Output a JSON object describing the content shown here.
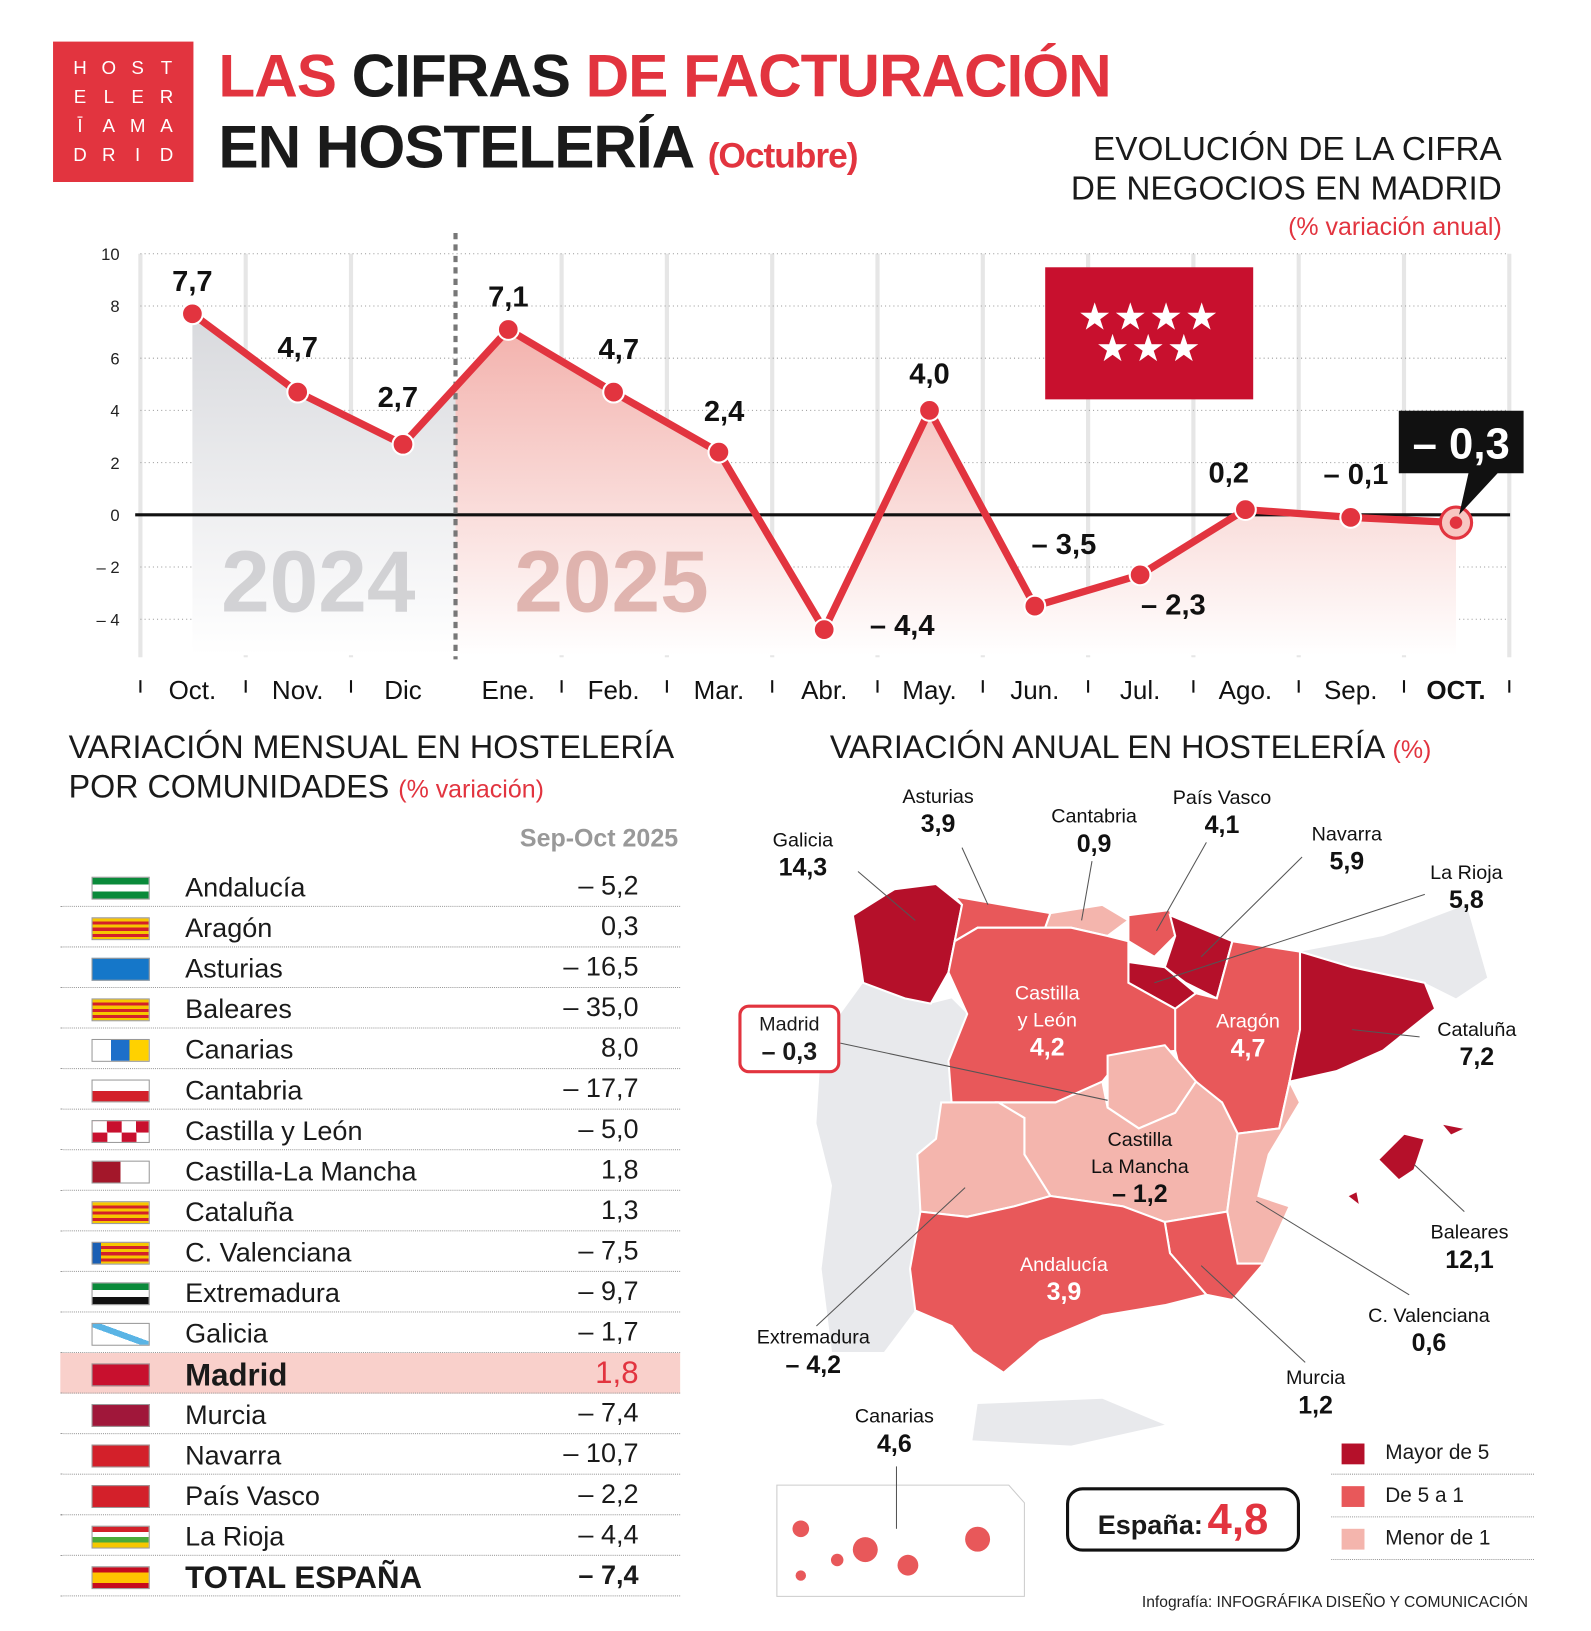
{
  "logo": {
    "letters": [
      "H",
      "O",
      "S",
      "T",
      "E",
      "L",
      "E",
      "R",
      "Ī",
      "A",
      "M",
      "A",
      "D",
      "R",
      "I",
      "D"
    ]
  },
  "title": {
    "line1_a": "LAS",
    "line1_b": "CIFRAS",
    "line1_c": "DE FACTURACIÓN",
    "line2": "EN HOSTELERÍA",
    "month": "(Octubre)"
  },
  "chart_data": {
    "type": "line",
    "title": "EVOLUCIÓN DE LA CIFRA DE NEGOCIOS EN MADRID",
    "title_line1": "EVOLUCIÓN DE LA CIFRA",
    "title_line2": "DE NEGOCIOS EN MADRID",
    "subtitle": "(% variación anual)",
    "categories": [
      "Oct.",
      "Nov.",
      "Dic",
      "Ene.",
      "Feb.",
      "Mar.",
      "Abr.",
      "May.",
      "Jun.",
      "Jul.",
      "Ago.",
      "Sep.",
      "OCT."
    ],
    "values": [
      7.7,
      4.7,
      2.7,
      7.1,
      4.7,
      2.4,
      -4.4,
      4.0,
      -3.5,
      -2.3,
      0.2,
      -0.1,
      -0.3
    ],
    "labels": [
      "7,7",
      "4,7",
      "2,7",
      "7,1",
      "4,7",
      "2,4",
      "– 4,4",
      "4,0",
      "– 3,5",
      "– 2,3",
      "0,2",
      "– 0,1",
      "– 0,3"
    ],
    "yticks": [
      "10",
      "8",
      "6",
      "4",
      "2",
      "0",
      "– 2",
      "– 4"
    ],
    "ytick_values": [
      10,
      8,
      6,
      4,
      2,
      0,
      -2,
      -4
    ],
    "ylim": [
      -5,
      10
    ],
    "year_labels": [
      "2024",
      "2025"
    ],
    "colors": {
      "line": "#e2343f",
      "fill_2024": "#d8d9dd",
      "fill_2025": "#f3b2ad"
    },
    "grid": true
  },
  "monthly": {
    "title_line1": "VARIACIÓN MENSUAL EN HOSTELERÍA",
    "title_line2": "POR COMUNIDADES",
    "unit": "(% variación)",
    "column": "Sep-Oct 2025",
    "rows": [
      {
        "name": "Andalucía",
        "value": "– 5,2",
        "flag": "andalucia"
      },
      {
        "name": "Aragón",
        "value": "0,3",
        "flag": "aragon"
      },
      {
        "name": "Asturias",
        "value": "– 16,5",
        "flag": "asturias"
      },
      {
        "name": "Baleares",
        "value": "– 35,0",
        "flag": "baleares"
      },
      {
        "name": "Canarias",
        "value": "8,0",
        "flag": "canarias"
      },
      {
        "name": "Cantabria",
        "value": "– 17,7",
        "flag": "cantabria"
      },
      {
        "name": "Castilla y León",
        "value": "– 5,0",
        "flag": "castilla-leon"
      },
      {
        "name": "Castilla-La Mancha",
        "value": "1,8",
        "flag": "castilla-la-mancha"
      },
      {
        "name": "Cataluña",
        "value": "1,3",
        "flag": "cataluna"
      },
      {
        "name": "C. Valenciana",
        "value": "– 7,5",
        "flag": "valenciana"
      },
      {
        "name": "Extremadura",
        "value": "– 9,7",
        "flag": "extremadura"
      },
      {
        "name": "Galicia",
        "value": "– 1,7",
        "flag": "galicia"
      },
      {
        "name": "Madrid",
        "value": "1,8",
        "flag": "madrid",
        "highlight": true
      },
      {
        "name": "Murcia",
        "value": "– 7,4",
        "flag": "murcia"
      },
      {
        "name": "Navarra",
        "value": "– 10,7",
        "flag": "navarra"
      },
      {
        "name": "País Vasco",
        "value": "– 2,2",
        "flag": "pais-vasco"
      },
      {
        "name": "La Rioja",
        "value": "– 4,4",
        "flag": "rioja"
      },
      {
        "name": "TOTAL ESPAÑA",
        "value": "– 7,4",
        "flag": "espana",
        "total": true
      }
    ]
  },
  "annual": {
    "title": "VARIACIÓN ANUAL EN HOSTELERÍA",
    "unit": "(%)",
    "regions": {
      "galicia": {
        "name": "Galicia",
        "value": "14,3",
        "cat": "high"
      },
      "asturias": {
        "name": "Asturias",
        "value": "3,9",
        "cat": "mid"
      },
      "cantabria": {
        "name": "Cantabria",
        "value": "0,9",
        "cat": "low"
      },
      "paisvasco": {
        "name": "País Vasco",
        "value": "4,1",
        "cat": "mid"
      },
      "navarra": {
        "name": "Navarra",
        "value": "5,9",
        "cat": "high"
      },
      "rioja": {
        "name": "La Rioja",
        "value": "5,8",
        "cat": "high"
      },
      "cyl": {
        "name1": "Castilla",
        "name2": "y León",
        "value": "4,2",
        "cat": "mid"
      },
      "aragon": {
        "name": "Aragón",
        "value": "4,7",
        "cat": "mid"
      },
      "cataluna": {
        "name": "Cataluña",
        "value": "7,2",
        "cat": "high"
      },
      "madrid": {
        "name": "Madrid",
        "value": "– 0,3",
        "cat": "low"
      },
      "clm": {
        "name1": "Castilla",
        "name2": "La Mancha",
        "value": "– 1,2",
        "cat": "low"
      },
      "extremadura": {
        "name": "Extremadura",
        "value": "– 4,2",
        "cat": "low"
      },
      "andalucia": {
        "name": "Andalucía",
        "value": "3,9",
        "cat": "mid"
      },
      "murcia": {
        "name": "Murcia",
        "value": "1,2",
        "cat": "mid"
      },
      "valenciana": {
        "name": "C. Valenciana",
        "value": "0,6",
        "cat": "low"
      },
      "baleares": {
        "name": "Baleares",
        "value": "12,1",
        "cat": "high"
      },
      "canarias": {
        "name": "Canarias",
        "value": "4,6",
        "cat": "mid"
      }
    },
    "legend": [
      {
        "label": "Mayor de 5",
        "color": "#b5102a"
      },
      {
        "label": "De 5 a 1",
        "color": "#e8585a"
      },
      {
        "label": "Menor de 1",
        "color": "#f4b5ad"
      }
    ],
    "total_label": "España:",
    "total_value": "4,8"
  },
  "credit": {
    "prefix": "Infografía:",
    "name": "INFOGRÁFIKA DISEÑO Y COMUNICACIÓN"
  }
}
